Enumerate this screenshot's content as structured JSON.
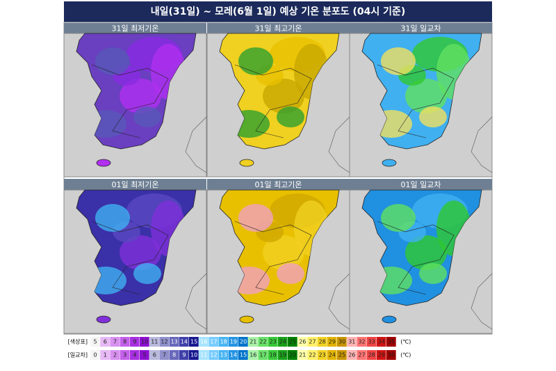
{
  "header": {
    "title": "내일(31일) ~ 모레(6월 1일) 예상 기온 분포도 (04시 기준)"
  },
  "panels": [
    {
      "label": "31일 최저기온",
      "palette": [
        "#6a3fc0",
        "#8a2be2",
        "#b030f0",
        "#5858b8"
      ]
    },
    {
      "label": "31일 최고기온",
      "palette": [
        "#f0d020",
        "#e8c000",
        "#c8a800",
        "#30a030"
      ]
    },
    {
      "label": "31일 일교차",
      "palette": [
        "#40b0f0",
        "#30c830",
        "#60e060",
        "#f0e060"
      ]
    },
    {
      "label": "01일 최저기온",
      "palette": [
        "#3a30a8",
        "#5a48c0",
        "#8030d8",
        "#40b0f0"
      ]
    },
    {
      "label": "01일 최고기온",
      "palette": [
        "#e8c000",
        "#d0a800",
        "#f0d020",
        "#f0a0c0"
      ]
    },
    {
      "label": "01일 일교차",
      "palette": [
        "#2090e0",
        "#40b0f0",
        "#30c830",
        "#60e060"
      ]
    }
  ],
  "legend": [
    {
      "name": "[색상표]",
      "unit": "(℃)",
      "labels": [
        "5",
        "6",
        "7",
        "8",
        "9",
        "10",
        "11",
        "12",
        "13",
        "14",
        "15",
        "16",
        "17",
        "18",
        "19",
        "20",
        "21",
        "22",
        "23",
        "24",
        "25",
        "26",
        "27",
        "28",
        "29",
        "30",
        "31",
        "32",
        "33",
        "34",
        "35"
      ]
    },
    {
      "name": "[일교차]",
      "unit": "(℃)",
      "labels": [
        "0",
        "1",
        "2",
        "3",
        "4",
        "5",
        "6",
        "7",
        "8",
        "9",
        "10",
        "11",
        "12",
        "13",
        "14",
        "15",
        "16",
        "17",
        "18",
        "19",
        "20",
        "21",
        "22",
        "23",
        "24",
        "25",
        "26",
        "27",
        "28",
        "29",
        "30"
      ]
    }
  ],
  "legend_colors": [
    "#f4f4f4",
    "#e6b8f4",
    "#d890f0",
    "#c460ea",
    "#a830e0",
    "#8c10d0",
    "#b8b8dc",
    "#9090cc",
    "#6868bc",
    "#4040aa",
    "#181890",
    "#a8e4ff",
    "#78ccff",
    "#48b4f2",
    "#2494e2",
    "#0074ca",
    "#a8f2a8",
    "#68e068",
    "#38c838",
    "#18a018",
    "#008000",
    "#ffffa8",
    "#fff068",
    "#f2d224",
    "#e2b400",
    "#c89400",
    "#ffb4b4",
    "#ff7474",
    "#f04444",
    "#d01414",
    "#a00000"
  ]
}
